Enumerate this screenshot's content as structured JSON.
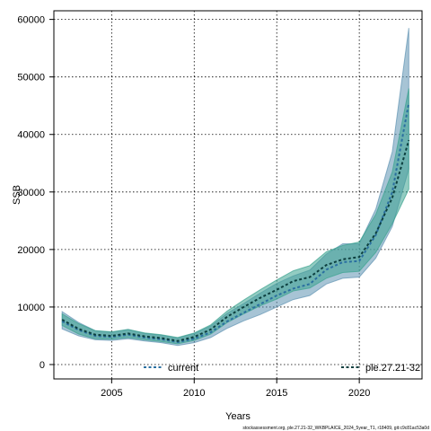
{
  "chart_data": {
    "type": "line",
    "xlabel": "Years",
    "ylabel": "SSB",
    "xlim": [
      2001.5,
      2023.8
    ],
    "ylim": [
      -2500,
      61500
    ],
    "x_ticks": [
      2005,
      2010,
      2015,
      2020
    ],
    "y_ticks": [
      0,
      10000,
      20000,
      30000,
      40000,
      50000,
      60000
    ],
    "grid": true,
    "legend_placement": "bottom",
    "x": [
      2002,
      2003,
      2004,
      2005,
      2006,
      2007,
      2008,
      2009,
      2010,
      2011,
      2012,
      2013,
      2014,
      2015,
      2016,
      2017,
      2018,
      2019,
      2020,
      2021,
      2022,
      2023
    ],
    "series": [
      {
        "name": "current",
        "color": "#2a6fa0",
        "band_color": "#5f93b2",
        "values": [
          7500,
          6000,
          5000,
          4800,
          5200,
          4700,
          4400,
          3900,
          4500,
          5600,
          7500,
          9000,
          10500,
          12000,
          13200,
          14000,
          16500,
          17800,
          18000,
          22500,
          30000,
          45500
        ],
        "lower": [
          6200,
          5000,
          4300,
          4200,
          4500,
          4100,
          3800,
          3300,
          3800,
          4700,
          6300,
          7600,
          8700,
          10000,
          11300,
          12000,
          14000,
          15000,
          15200,
          18500,
          24000,
          34000
        ],
        "upper": [
          9200,
          7300,
          5900,
          5600,
          6100,
          5400,
          5100,
          4600,
          5400,
          6700,
          8900,
          10600,
          12400,
          14100,
          15400,
          16400,
          19200,
          21000,
          21000,
          27000,
          37000,
          58500
        ]
      },
      {
        "name": "ple.27.21-32",
        "color": "#0c3f3f",
        "band_color": "#3aa38f",
        "values": [
          7800,
          6200,
          5200,
          5000,
          5400,
          4900,
          4600,
          4100,
          4800,
          6100,
          8300,
          10000,
          11600,
          13000,
          14500,
          15200,
          17300,
          18300,
          18700,
          22800,
          29000,
          39000
        ],
        "lower": [
          6800,
          5300,
          4500,
          4400,
          4700,
          4300,
          4000,
          3600,
          4200,
          5300,
          7300,
          8800,
          10200,
          11400,
          12800,
          13300,
          15000,
          16000,
          16200,
          19500,
          24500,
          30500
        ],
        "upper": [
          8800,
          7100,
          5900,
          5700,
          6100,
          5500,
          5200,
          4700,
          5500,
          6900,
          9300,
          11200,
          13000,
          14700,
          16300,
          17200,
          19600,
          20700,
          21300,
          26100,
          33500,
          48000
        ]
      }
    ],
    "footer": "stockassessment.org, ple.27.21-32_WKBPLAICE_2024_5year_T1, r18409, git:c9c81ac53a0d"
  }
}
